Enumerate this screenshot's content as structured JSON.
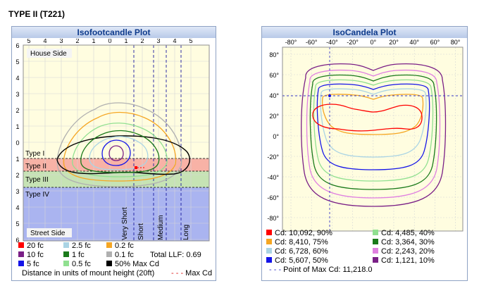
{
  "page_title": "TYPE II (T221)",
  "left_panel": {
    "title": "Isofootcandle Plot",
    "house_label": "House Side",
    "street_label": "Street Side",
    "type_labels": [
      "Type I",
      "Type II",
      "Type III",
      "Type IV"
    ],
    "vertical_labels": [
      "Very Short",
      "Short",
      "Medium",
      "Long"
    ],
    "legend": [
      {
        "label": "20 fc",
        "color": "#ff0000"
      },
      {
        "label": "2.5 fc",
        "color": "#aad4e4"
      },
      {
        "label": "0.2 fc",
        "color": "#f5a623"
      },
      {
        "label": "10 fc",
        "color": "#7a1f86"
      },
      {
        "label": "1 fc",
        "color": "#1a7a1a"
      },
      {
        "label": "0.1 fc",
        "color": "#b0b0b0"
      },
      {
        "label": "5 fc",
        "color": "#1414e8"
      },
      {
        "label": "0.5 fc",
        "color": "#90e090"
      },
      {
        "label": "50% Max Cd",
        "color": "#000000"
      }
    ],
    "total_llf": "Total LLF: 0.69",
    "distance_note": "Distance in units of mount height (20ft)",
    "max_cd_label": "Max Cd"
  },
  "right_panel": {
    "title": "IsoCandela Plot",
    "legend": [
      {
        "label": "Cd: 10,092, 90%",
        "color": "#ff0000"
      },
      {
        "label": "Cd: 4,485, 40%",
        "color": "#90e090"
      },
      {
        "label": "Cd: 8,410, 75%",
        "color": "#f5a623"
      },
      {
        "label": "Cd: 3,364, 30%",
        "color": "#1a7a1a"
      },
      {
        "label": "Cd: 6,728, 60%",
        "color": "#aad4e4"
      },
      {
        "label": "Cd: 2,243, 20%",
        "color": "#e080e0"
      },
      {
        "label": "Cd: 5,607, 50%",
        "color": "#1414e8"
      },
      {
        "label": "Cd: 1,121, 10%",
        "color": "#7a1f86"
      }
    ],
    "max_point_label": "Point of Max Cd: 11,218.0"
  },
  "chart_data": [
    {
      "type": "contour",
      "title": "Isofootcandle Plot",
      "x_ticks": [
        "5",
        "4",
        "3",
        "2",
        "1",
        "0",
        "1",
        "2",
        "3",
        "4",
        "5"
      ],
      "y_ticks": [
        "6",
        "5",
        "4",
        "3",
        "2",
        "1",
        "0",
        "1",
        "2",
        "3",
        "4",
        "5",
        "6"
      ],
      "xlim": [
        -5.5,
        6
      ],
      "ylim": [
        -6,
        6
      ],
      "series": [
        {
          "name": "20 fc",
          "level": 20
        },
        {
          "name": "10 fc",
          "level": 10
        },
        {
          "name": "5 fc",
          "level": 5
        },
        {
          "name": "2.5 fc",
          "level": 2.5
        },
        {
          "name": "1 fc",
          "level": 1
        },
        {
          "name": "0.5 fc",
          "level": 0.5
        },
        {
          "name": "0.2 fc",
          "level": 0.2
        },
        {
          "name": "0.1 fc",
          "level": 0.1
        },
        {
          "name": "50% Max Cd",
          "level": "50%"
        }
      ],
      "type_band_boundaries_y": [
        1,
        1.75,
        2.75
      ],
      "vertical_boundaries_x": [
        1,
        2.25,
        3,
        4.5
      ],
      "max_cd_point": [
        1.3,
        0.8
      ],
      "grid": true
    },
    {
      "type": "contour",
      "title": "IsoCandela Plot",
      "x_ticks": [
        "-80°",
        "-60°",
        "-40°",
        "-20°",
        "0°",
        "20°",
        "40°",
        "60°",
        "80°"
      ],
      "y_ticks": [
        "80°",
        "60°",
        "40°",
        "20°",
        "0°",
        "-20°",
        "-40°",
        "-60°",
        "-80°"
      ],
      "xlim": [
        -90,
        90
      ],
      "ylim": [
        -90,
        90
      ],
      "series": [
        {
          "name": "Cd: 10,092, 90%",
          "candela": 10092,
          "percent": 90
        },
        {
          "name": "Cd: 8,410, 75%",
          "candela": 8410,
          "percent": 75
        },
        {
          "name": "Cd: 6,728, 60%",
          "candela": 6728,
          "percent": 60
        },
        {
          "name": "Cd: 5,607, 50%",
          "candela": 5607,
          "percent": 50
        },
        {
          "name": "Cd: 4,485, 40%",
          "candela": 4485,
          "percent": 40
        },
        {
          "name": "Cd: 3,364, 30%",
          "candela": 3364,
          "percent": 30
        },
        {
          "name": "Cd: 2,243, 20%",
          "candela": 2243,
          "percent": 20
        },
        {
          "name": "Cd: 1,121, 10%",
          "candela": 1121,
          "percent": 10
        }
      ],
      "point_of_max": {
        "x": -45,
        "y": 40,
        "value": 11218.0
      },
      "grid": true
    }
  ]
}
